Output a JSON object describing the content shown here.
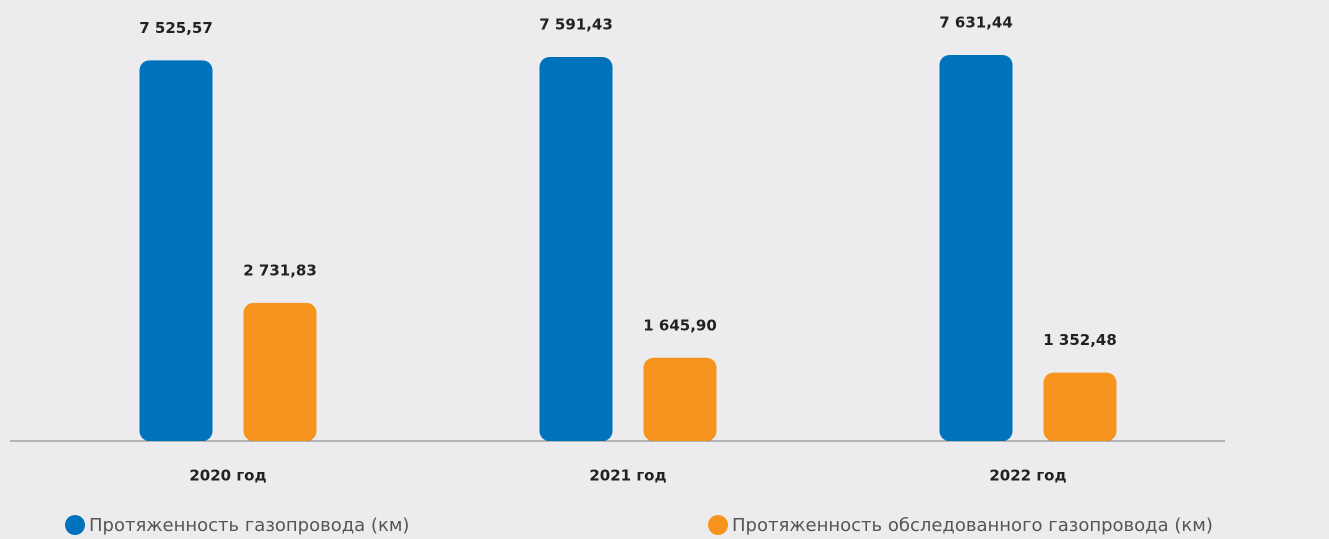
{
  "chart_data": {
    "type": "bar",
    "categories": [
      "2020 год",
      "2021 год",
      "2022 год"
    ],
    "series": [
      {
        "name": "Протяженность газопровода (км)",
        "color": "#0072bc",
        "values": [
          7525.57,
          7591.43,
          7631.44
        ],
        "value_labels": [
          "7 525,57",
          "7 591,43",
          "7 631,44"
        ]
      },
      {
        "name": "Протяженность обследованного газопровода (км)",
        "color": "#f7941d",
        "values": [
          2731.83,
          1645.9,
          1352.48
        ],
        "value_labels": [
          "2 731,83",
          "1 645,90",
          "1 352,48"
        ]
      }
    ]
  }
}
